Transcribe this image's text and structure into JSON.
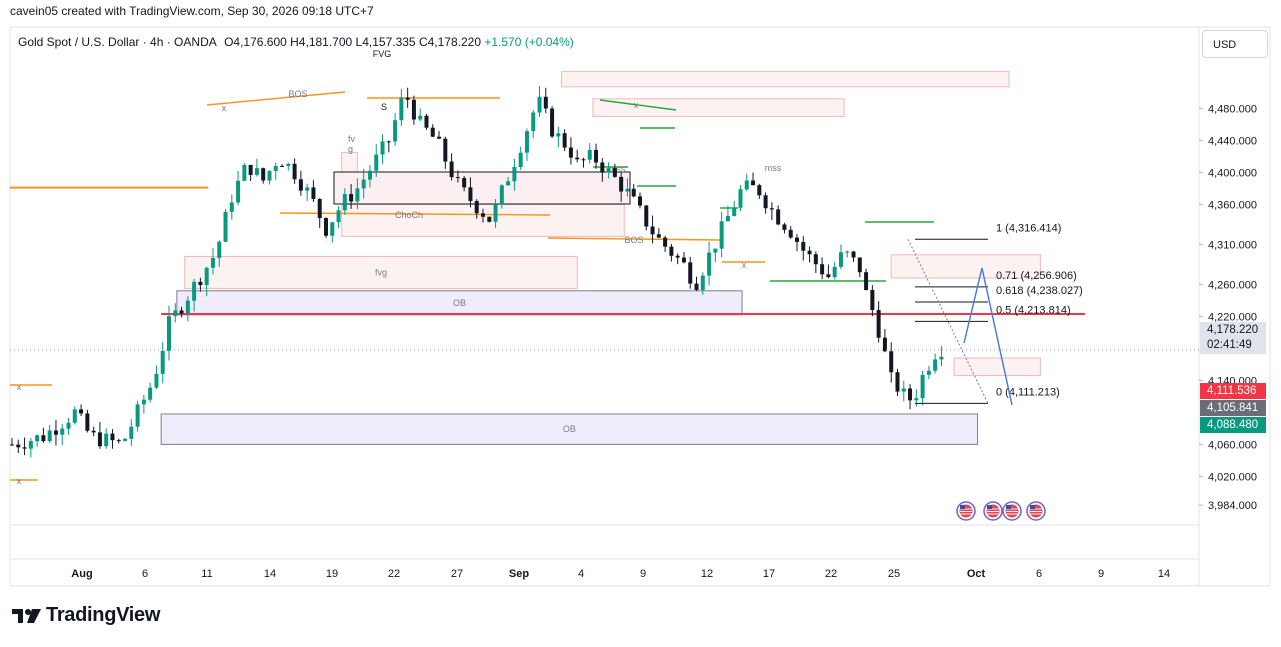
{
  "header": "cavein05 created with TradingView.com, Sep 30, 2026 09:18 UTC+7",
  "legend": {
    "symbol": "Gold Spot / U.S. Dollar · 4h · OANDA",
    "open": "O4,176.600",
    "high": "H4,181.700",
    "low": "L4,157.335",
    "close": "C4,178.220",
    "change": "+1.570 (+0.04%)"
  },
  "currency": "USD",
  "colors": {
    "up": "#089981",
    "down": "#131722",
    "orange": "#f7931a",
    "red_line": "#f23645",
    "green_line": "#26a637",
    "blue_path": "#4a7fd4",
    "ob_fill": "#ede9fa",
    "fvg_fill": "#fdf0f0"
  },
  "badges": {
    "price": "4,178.220",
    "countdown": "02:41:49",
    "red": "4,111.536",
    "gray": "4,105.841",
    "green": "4,088.480"
  },
  "chart_data": {
    "type": "candlestick",
    "title": "Gold Spot / U.S. Dollar · 4h · OANDA",
    "x_tick_labels": [
      "Aug",
      "6",
      "11",
      "14",
      "19",
      "22",
      "27",
      "Sep",
      "4",
      "9",
      "12",
      "17",
      "22",
      "25",
      "Oct",
      "6",
      "9",
      "14"
    ],
    "y_tick_labels": [
      "4,480.000",
      "4,440.000",
      "4,400.000",
      "4,360.000",
      "4,310.000",
      "4,260.000",
      "4,220.000",
      "4,140.000",
      "4,060.000",
      "4,020.000",
      "3,984.000"
    ],
    "ylim": [
      3984,
      4510
    ],
    "grid": false,
    "price_path": [
      [
        0,
        4060
      ],
      [
        4,
        4070
      ],
      [
        8,
        4100
      ],
      [
        10,
        4070
      ],
      [
        14,
        4060
      ],
      [
        18,
        4140
      ],
      [
        20,
        4210
      ],
      [
        22,
        4240
      ],
      [
        24,
        4270
      ],
      [
        26,
        4300
      ],
      [
        28,
        4370
      ],
      [
        30,
        4410
      ],
      [
        32,
        4390
      ],
      [
        34,
        4420
      ],
      [
        36,
        4400
      ],
      [
        38,
        4370
      ],
      [
        40,
        4330
      ],
      [
        42,
        4360
      ],
      [
        44,
        4380
      ],
      [
        46,
        4410
      ],
      [
        48,
        4440
      ],
      [
        50,
        4500
      ],
      [
        52,
        4460
      ],
      [
        54,
        4440
      ],
      [
        55,
        4420
      ],
      [
        57,
        4380
      ],
      [
        59,
        4360
      ],
      [
        61,
        4340
      ],
      [
        63,
        4390
      ],
      [
        65,
        4440
      ],
      [
        67,
        4490
      ],
      [
        69,
        4450
      ],
      [
        71,
        4430
      ],
      [
        72,
        4410
      ],
      [
        74,
        4420
      ],
      [
        76,
        4400
      ],
      [
        78,
        4380
      ],
      [
        80,
        4350
      ],
      [
        82,
        4320
      ],
      [
        84,
        4300
      ],
      [
        86,
        4280
      ],
      [
        87,
        4260
      ],
      [
        89,
        4300
      ],
      [
        91,
        4340
      ],
      [
        93,
        4380
      ],
      [
        95,
        4380
      ],
      [
        97,
        4350
      ],
      [
        99,
        4330
      ],
      [
        101,
        4300
      ],
      [
        103,
        4280
      ],
      [
        104,
        4270
      ],
      [
        106,
        4300
      ],
      [
        107,
        4290
      ],
      [
        108,
        4280
      ],
      [
        109,
        4240
      ],
      [
        110,
        4220
      ],
      [
        111,
        4180
      ],
      [
        112,
        4140
      ],
      [
        113,
        4130
      ],
      [
        114,
        4115
      ],
      [
        115,
        4120
      ],
      [
        116,
        4145
      ],
      [
        117,
        4165
      ],
      [
        118,
        4182
      ],
      [
        119,
        4178
      ]
    ],
    "x_end_index": 119,
    "annotations": {
      "fibonacci": [
        {
          "label": "1 (4,316.414)",
          "price": 4316.414
        },
        {
          "label": "0.71 (4,256.906)",
          "price": 4256.906
        },
        {
          "label": "0.618 (4,238.027)",
          "price": 4238.027
        },
        {
          "label": "0.5 (4,213.814)",
          "price": 4213.814
        },
        {
          "label": "0 (4,111.213)",
          "price": 4111.213
        }
      ],
      "zones": [
        {
          "label": "OB",
          "type": "order-block",
          "top": 4252,
          "bottom": 4222,
          "x_from": 21,
          "x_to": 93
        },
        {
          "label": "OB",
          "type": "order-block",
          "top": 4098,
          "bottom": 4060,
          "x_from": 19,
          "x_to": 123
        },
        {
          "label": "fvg",
          "type": "fair-value-gap",
          "top": 4295,
          "bottom": 4255,
          "x_from": 22,
          "x_to": 72
        },
        {
          "label": "",
          "type": "fair-value-gap",
          "top": 4360,
          "bottom": 4320,
          "x_from": 42,
          "x_to": 78
        },
        {
          "label": "",
          "type": "fair-value-gap",
          "top": 4297,
          "bottom": 4268,
          "x_from": 112,
          "x_to": 131
        },
        {
          "label": "",
          "type": "fair-value-gap",
          "top": 4168,
          "bottom": 4146,
          "x_from": 120,
          "x_to": 131
        },
        {
          "label": "",
          "type": "fair-value-gap",
          "top": 4492,
          "bottom": 4470,
          "x_from": 74,
          "x_to": 106
        },
        {
          "label": "",
          "type": "fair-value-gap",
          "top": 4526,
          "bottom": 4507,
          "x_from": 70,
          "x_to": 127
        },
        {
          "label": "fv g",
          "type": "fair-value-gap",
          "top": 4425,
          "bottom": 4360,
          "x_from": 42,
          "x_to": 44
        }
      ],
      "structure_labels": [
        "BOS",
        "ChoCh",
        "BOS",
        "mss",
        "mss",
        "FVG",
        "S",
        "x",
        "x",
        "x",
        "x",
        "x"
      ],
      "levels": [
        {
          "price": 4223,
          "color": "red",
          "label": ""
        },
        {
          "price": 4381,
          "color": "orange",
          "label": ""
        }
      ]
    }
  }
}
